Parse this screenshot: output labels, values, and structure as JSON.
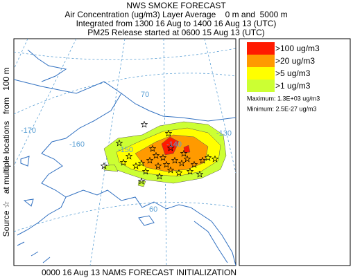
{
  "header": {
    "title": "NWS SMOKE FORECAST",
    "lines": [
      "Air Concentration (ug/m3) Layer Average    0 m and  5000 m",
      "Integrated from 1300 16 Aug to 1400 16 Aug 13 (UTC)",
      "PM25 Release started at 0600 15 Aug 13 (UTC)"
    ]
  },
  "source_label": "Source ☆   at multiple locations   from   100 m",
  "map": {
    "longitude_labels": [
      "-170",
      "-160",
      "-150",
      "-140",
      "-130"
    ],
    "latitude_labels": [
      "70",
      "60"
    ]
  },
  "legend": {
    "items": [
      {
        "label": ">100 ug/m3",
        "color": "#ff1a00"
      },
      {
        "label": ">20 ug/m3",
        "color": "#ff9a00"
      },
      {
        "label": ">5 ug/m3",
        "color": "#ffff00"
      },
      {
        "label": ">1 ug/m3",
        "color": "#ccff33"
      }
    ],
    "maximum": "Maximum: 1.3E+03 ug/m3",
    "minimum": "Minimum: 2.5E-27 ug/m3"
  },
  "footer": "0000 16 Aug 13 NAMS FORECAST INITIALIZATION"
}
